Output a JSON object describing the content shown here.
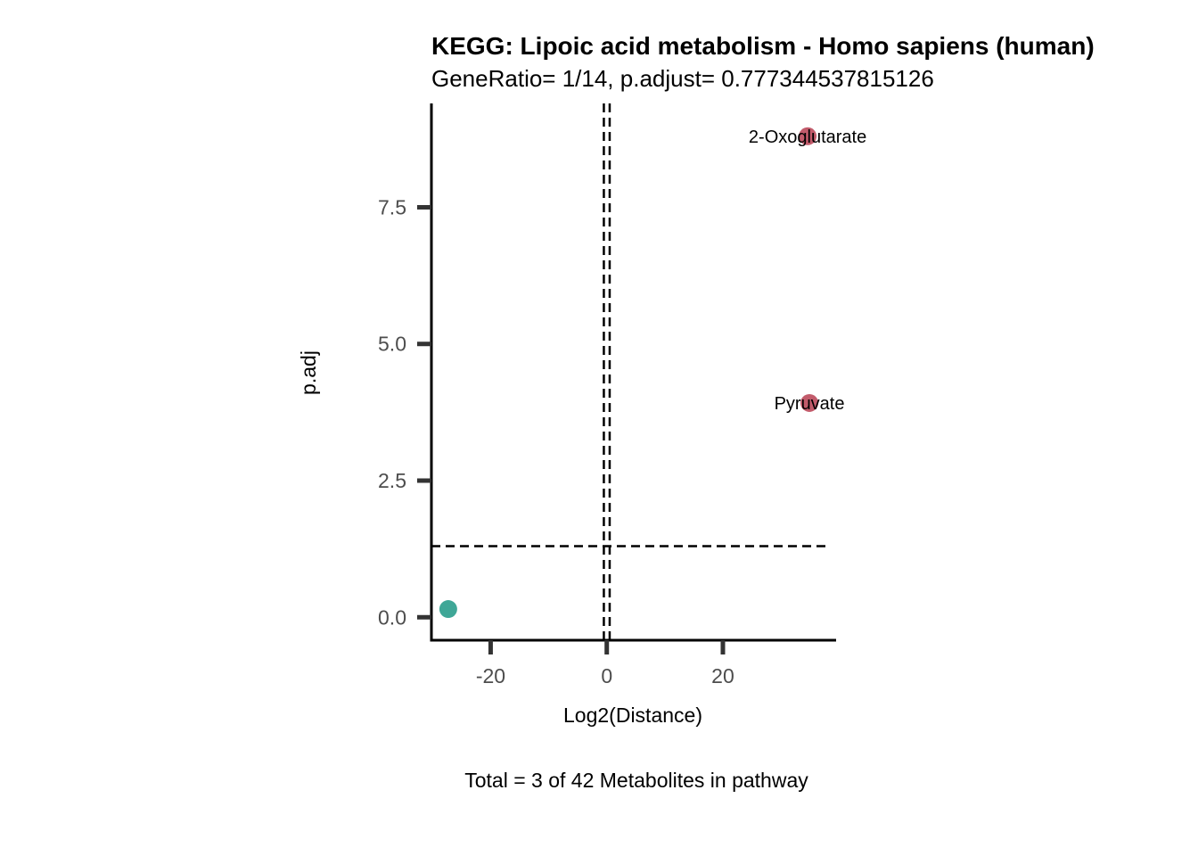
{
  "chart_data": {
    "type": "scatter",
    "title": "KEGG: Lipoic acid metabolism - Homo sapiens (human)",
    "subtitle": "GeneRatio= 1/14, p.adjust= 0.777344537815126",
    "xlabel": "Log2(Distance)",
    "ylabel": "p.adj",
    "caption": "Total = 3 of 42 Metabolites in pathway",
    "xlim": [
      -30.2,
      39.5
    ],
    "ylim": [
      -0.42,
      9.4
    ],
    "x_ticks": [
      -20,
      0,
      20
    ],
    "x_tick_labels": [
      "-20",
      "0",
      "20"
    ],
    "y_ticks": [
      0,
      2.5,
      5,
      7.5
    ],
    "y_tick_labels": [
      "0.0",
      "2.5",
      "5.0",
      "7.5"
    ],
    "grid": false,
    "legend": "none",
    "reference_lines": {
      "vertical": [
        -0.5,
        0.5
      ],
      "horizontal": [
        1.3
      ]
    },
    "points": [
      {
        "x": 34.6,
        "y": 8.8,
        "label": "2-Oxoglutarate",
        "color": "#C25B6B"
      },
      {
        "x": 34.9,
        "y": 3.92,
        "label": "Pyruvate",
        "color": "#C25B6B"
      },
      {
        "x": -27.3,
        "y": 0.15,
        "label": "",
        "color": "#3FA797"
      }
    ]
  }
}
